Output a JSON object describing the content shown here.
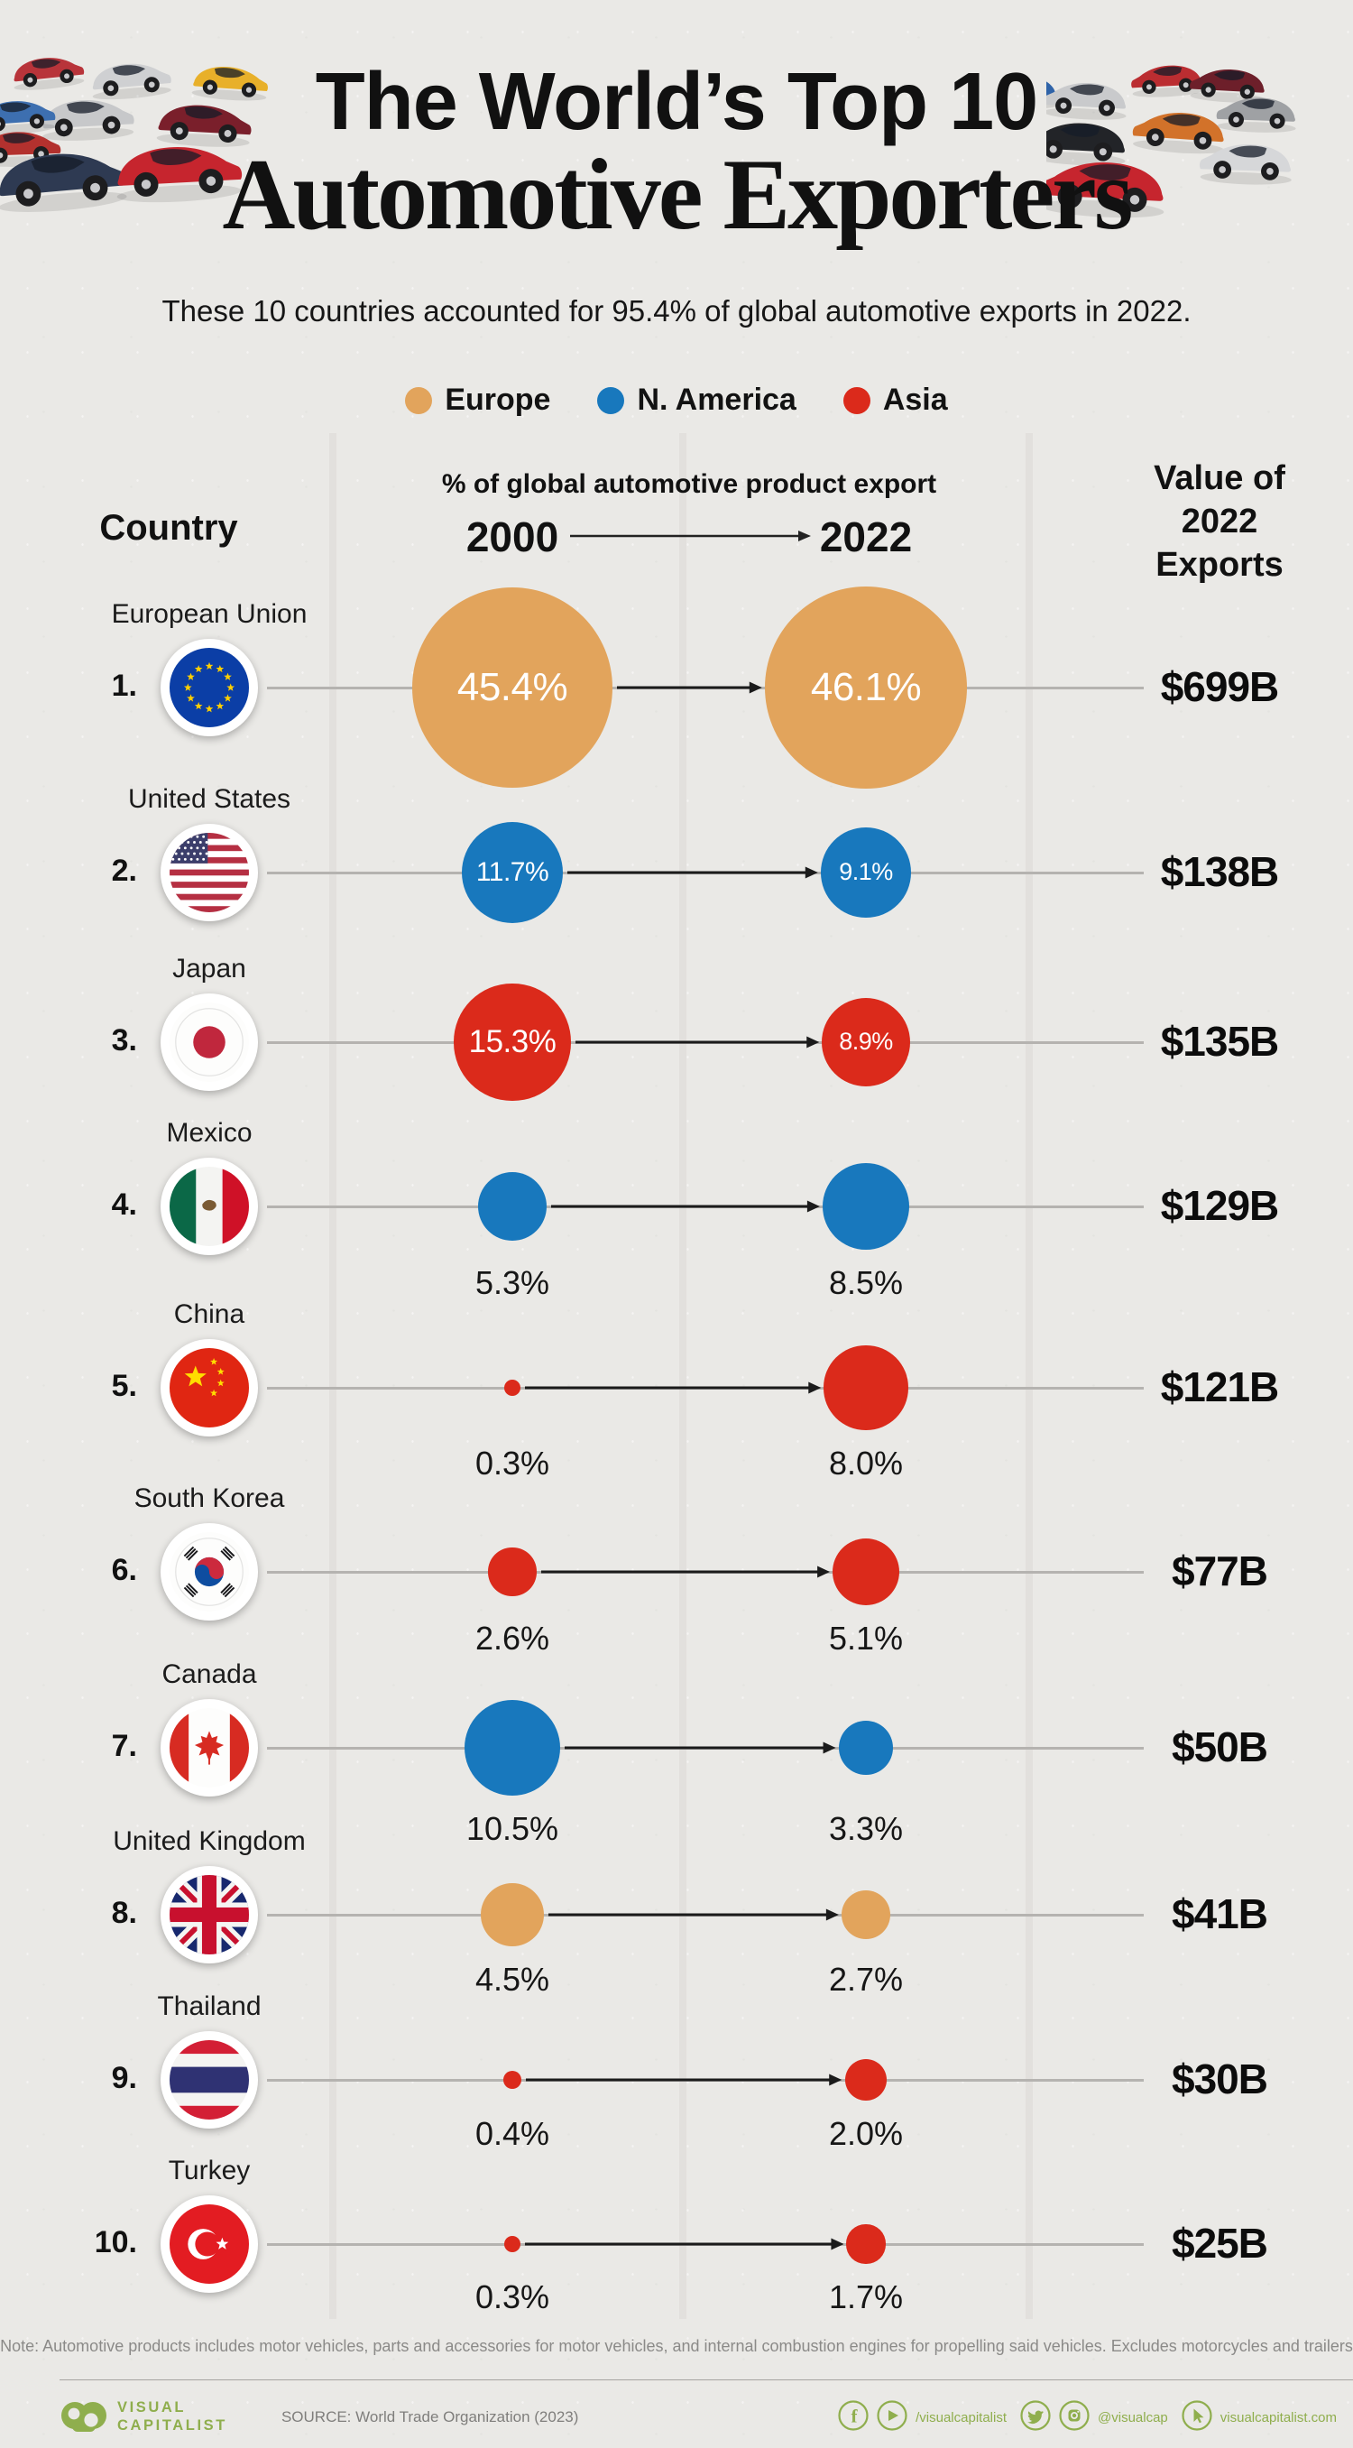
{
  "title": {
    "line1": "The World’s Top 10",
    "line2": "Automotive Exporters"
  },
  "subtitle": "These 10 countries accounted for 95.4% of global automotive exports in 2022.",
  "legend": {
    "items": [
      {
        "label": "Europe",
        "color": "#E2A45C"
      },
      {
        "label": "N. America",
        "color": "#1878BD"
      },
      {
        "label": "Asia",
        "color": "#DB2A1B"
      }
    ]
  },
  "table": {
    "country_header": "Country",
    "pct_header": "% of global automotive product export",
    "year_start": "2000",
    "year_end": "2022",
    "value_header": "Value of 2022 Exports"
  },
  "rows": [
    {
      "rank": "1.",
      "country": "European Union",
      "region": "Europe",
      "flag": "eu",
      "pct_2000": "45.4%",
      "pct_2022": "46.1%",
      "pct_2000_num": 45.4,
      "pct_2022_num": 46.1,
      "value": "$699B",
      "labels_inside": true
    },
    {
      "rank": "2.",
      "country": "United States",
      "region": "N. America",
      "flag": "us",
      "pct_2000": "11.7%",
      "pct_2022": "9.1%",
      "pct_2000_num": 11.7,
      "pct_2022_num": 9.1,
      "value": "$138B",
      "labels_inside": true
    },
    {
      "rank": "3.",
      "country": "Japan",
      "region": "Asia",
      "flag": "jp",
      "pct_2000": "15.3%",
      "pct_2022": "8.9%",
      "pct_2000_num": 15.3,
      "pct_2022_num": 8.9,
      "value": "$135B",
      "labels_inside": true
    },
    {
      "rank": "4.",
      "country": "Mexico",
      "region": "N. America",
      "flag": "mx",
      "pct_2000": "5.3%",
      "pct_2022": "8.5%",
      "pct_2000_num": 5.3,
      "pct_2022_num": 8.5,
      "value": "$129B",
      "labels_inside": false
    },
    {
      "rank": "5.",
      "country": "China",
      "region": "Asia",
      "flag": "cn",
      "pct_2000": "0.3%",
      "pct_2022": "8.0%",
      "pct_2000_num": 0.3,
      "pct_2022_num": 8.0,
      "value": "$121B",
      "labels_inside": false
    },
    {
      "rank": "6.",
      "country": "South Korea",
      "region": "Asia",
      "flag": "kr",
      "pct_2000": "2.6%",
      "pct_2022": "5.1%",
      "pct_2000_num": 2.6,
      "pct_2022_num": 5.1,
      "value": "$77B",
      "labels_inside": false
    },
    {
      "rank": "7.",
      "country": "Canada",
      "region": "N. America",
      "flag": "ca",
      "pct_2000": "10.5%",
      "pct_2022": "3.3%",
      "pct_2000_num": 10.5,
      "pct_2022_num": 3.3,
      "value": "$50B",
      "labels_inside": false
    },
    {
      "rank": "8.",
      "country": "United Kingdom",
      "region": "Europe",
      "flag": "gb",
      "pct_2000": "4.5%",
      "pct_2022": "2.7%",
      "pct_2000_num": 4.5,
      "pct_2022_num": 2.7,
      "value": "$41B",
      "labels_inside": false
    },
    {
      "rank": "9.",
      "country": "Thailand",
      "region": "Asia",
      "flag": "th",
      "pct_2000": "0.4%",
      "pct_2022": "2.0%",
      "pct_2000_num": 0.4,
      "pct_2022_num": 2.0,
      "value": "$30B",
      "labels_inside": false
    },
    {
      "rank": "10.",
      "country": "Turkey",
      "region": "Asia",
      "flag": "tr",
      "pct_2000": "0.3%",
      "pct_2022": "1.7%",
      "pct_2000_num": 0.3,
      "pct_2022_num": 1.7,
      "value": "$25B",
      "labels_inside": false
    }
  ],
  "note": "Note: Automotive products includes motor vehicles, parts and accessories for motor vehicles, and internal combustion engines for propelling said vehicles. Excludes motorcycles and trailers",
  "source": "SOURCE: World Trade Organization (2023)",
  "footer": {
    "brand_line1": "VISUAL",
    "brand_line2": "CAPITALIST",
    "handle_fb_yt": "/visualcapitalist",
    "handle_tw_ig": "@visualcap",
    "website": "visualcapitalist.com",
    "icons": [
      "facebook-icon",
      "youtube-icon",
      "twitter-icon",
      "instagram-icon",
      "cursor-icon"
    ],
    "accent_green": "#8FAE4D"
  },
  "chart_data": {
    "type": "scatter",
    "title": "The World’s Top 10 Automotive Exporters",
    "subtitle": "These 10 countries accounted for 95.4% of global automotive exports in 2022.",
    "encoding": "paired bubbles per country; bubble diameter proportional to sqrt of % share; color = region",
    "x_categories": [
      "2000",
      "2022"
    ],
    "legend": [
      "Europe",
      "N. America",
      "Asia"
    ],
    "legend_position": "top",
    "series": [
      {
        "name": "European Union",
        "region": "Europe",
        "values": [
          45.4,
          46.1
        ],
        "value_2022_exports_usd_billion": 699
      },
      {
        "name": "United States",
        "region": "N. America",
        "values": [
          11.7,
          9.1
        ],
        "value_2022_exports_usd_billion": 138
      },
      {
        "name": "Japan",
        "region": "Asia",
        "values": [
          15.3,
          8.9
        ],
        "value_2022_exports_usd_billion": 135
      },
      {
        "name": "Mexico",
        "region": "N. America",
        "values": [
          5.3,
          8.5
        ],
        "value_2022_exports_usd_billion": 129
      },
      {
        "name": "China",
        "region": "Asia",
        "values": [
          0.3,
          8.0
        ],
        "value_2022_exports_usd_billion": 121
      },
      {
        "name": "South Korea",
        "region": "Asia",
        "values": [
          2.6,
          5.1
        ],
        "value_2022_exports_usd_billion": 77
      },
      {
        "name": "Canada",
        "region": "N. America",
        "values": [
          10.5,
          3.3
        ],
        "value_2022_exports_usd_billion": 50
      },
      {
        "name": "United Kingdom",
        "region": "Europe",
        "values": [
          4.5,
          2.7
        ],
        "value_2022_exports_usd_billion": 41
      },
      {
        "name": "Thailand",
        "region": "Asia",
        "values": [
          0.4,
          2.0
        ],
        "value_2022_exports_usd_billion": 30
      },
      {
        "name": "Turkey",
        "region": "Asia",
        "values": [
          0.3,
          1.7
        ],
        "value_2022_exports_usd_billion": 25
      }
    ]
  }
}
